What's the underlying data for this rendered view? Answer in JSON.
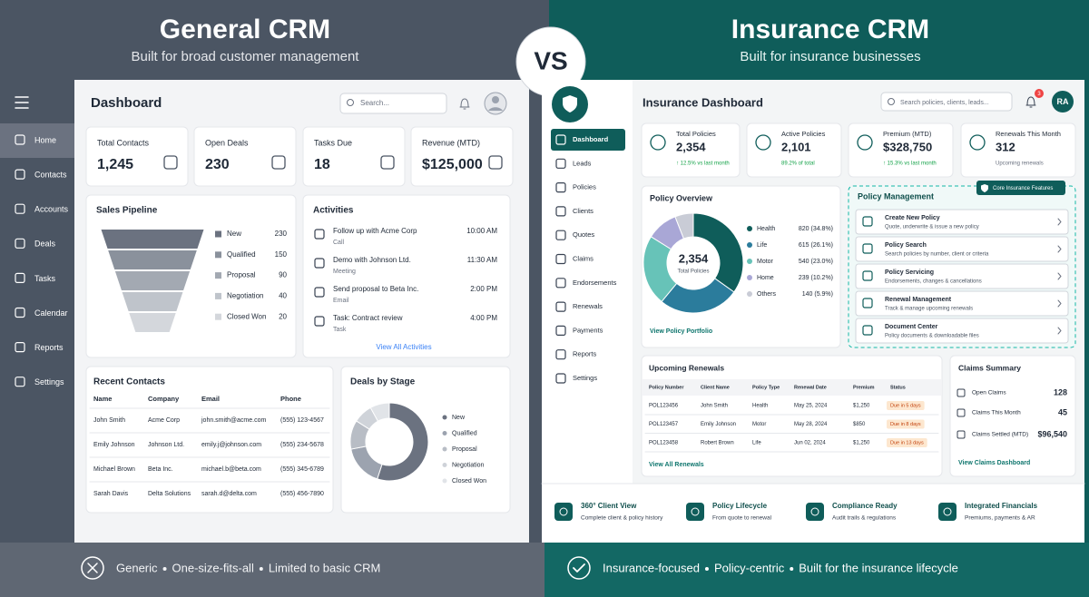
{
  "left": {
    "title": "General CRM",
    "subtitle": "Built for broad customer management",
    "nav": [
      "Home",
      "Contacts",
      "Accounts",
      "Deals",
      "Tasks",
      "Calendar",
      "Reports",
      "Settings"
    ],
    "dashboard_title": "Dashboard",
    "search_placeholder": "Search...",
    "kpis": [
      {
        "label": "Total Contacts",
        "value": "1,245"
      },
      {
        "label": "Open Deals",
        "value": 230
      },
      {
        "label": "Tasks Due",
        "value": 18
      },
      {
        "label": "Revenue (MTD)",
        "value": "$125,000"
      }
    ],
    "sales_pipeline": {
      "title": "Sales Pipeline",
      "stages": [
        "New",
        "Qualified",
        "Proposal",
        "Negotiation",
        "Closed Won"
      ],
      "values": [
        230,
        150,
        90,
        40,
        20
      ]
    },
    "activities": {
      "title": "Activities",
      "items": [
        {
          "title": "Follow up with Acme Corp",
          "type": "Call",
          "time": "10:00 AM"
        },
        {
          "title": "Demo with Johnson Ltd.",
          "type": "Meeting",
          "time": "11:30 AM"
        },
        {
          "title": "Send proposal to Beta Inc.",
          "type": "Email",
          "time": "2:00 PM"
        },
        {
          "title": "Task: Contract review",
          "type": "Task",
          "time": "4:00 PM"
        }
      ],
      "link": "View All Activities"
    },
    "recent_contacts": {
      "title": "Recent Contacts",
      "columns": [
        "Name",
        "Company",
        "Email",
        "Phone"
      ],
      "rows": [
        [
          "John Smith",
          "Acme Corp",
          "john.smith@acme.com",
          "(555) 123-4567"
        ],
        [
          "Emily Johnson",
          "Johnson Ltd.",
          "emily.j@johnson.com",
          "(555) 234-5678"
        ],
        [
          "Michael Brown",
          "Beta Inc.",
          "michael.b@beta.com",
          "(555) 345-6789"
        ],
        [
          "Sarah Davis",
          "Delta Solutions",
          "sarah.d@delta.com",
          "(555) 456-7890"
        ]
      ]
    },
    "deals_by_stage": {
      "title": "Deals by Stage",
      "legend": [
        "New",
        "Qualified",
        "Proposal",
        "Negotiation",
        "Closed Won"
      ]
    },
    "footer": [
      "Generic",
      "One-size-fits-all",
      "Limited to basic CRM"
    ]
  },
  "vs": "VS",
  "right": {
    "title": "Insurance CRM",
    "subtitle": "Built for insurance businesses",
    "nav": [
      "Dashboard",
      "Leads",
      "Policies",
      "Clients",
      "Quotes",
      "Claims",
      "Endorsements",
      "Renewals",
      "Payments",
      "Reports",
      "Settings"
    ],
    "dashboard_title": "Insurance Dashboard",
    "search_placeholder": "Search policies, clients, leads...",
    "notifications": 3,
    "user_initials": "RA",
    "kpis": [
      {
        "label": "Total Policies",
        "value": "2,354",
        "note": "↑ 12.5% vs last month"
      },
      {
        "label": "Active Policies",
        "value": "2,101",
        "note": "89.2% of total"
      },
      {
        "label": "Premium (MTD)",
        "value": "$328,750",
        "note": "↑ 15.3% vs last month"
      },
      {
        "label": "Renewals This Month",
        "value": 312,
        "note": "Upcoming renewals"
      }
    ],
    "policy_overview": {
      "title": "Policy Overview",
      "center_value": "2,354",
      "center_label": "Total Policies",
      "categories": [
        "Health",
        "Life",
        "Motor",
        "Home",
        "Others"
      ],
      "values": [
        820,
        615,
        540,
        239,
        140
      ],
      "value_labels": [
        "820 (34.8%)",
        "615 (26.1%)",
        "540 (23.0%)",
        "239 (10.2%)",
        "140 (5.9%)"
      ],
      "colors": [
        "#0f5d5a",
        "#2b7c9c",
        "#67c3b8",
        "#a9a7d6",
        "#c9ccd6"
      ],
      "link": "View Policy Portfolio"
    },
    "policy_management": {
      "title": "Policy Management",
      "badge": "Core Insurance Features",
      "items": [
        {
          "title": "Create New Policy",
          "desc": "Quote, underwrite & issue a new policy"
        },
        {
          "title": "Policy Search",
          "desc": "Search policies by number, client or criteria"
        },
        {
          "title": "Policy Servicing",
          "desc": "Endorsements, changes & cancellations"
        },
        {
          "title": "Renewal Management",
          "desc": "Track & manage upcoming renewals"
        },
        {
          "title": "Document Center",
          "desc": "Policy documents & downloadable files"
        }
      ]
    },
    "upcoming_renewals": {
      "title": "Upcoming Renewals",
      "columns": [
        "Policy Number",
        "Client Name",
        "Policy Type",
        "Renewal Date",
        "Premium",
        "Status"
      ],
      "rows": [
        [
          "POL123456",
          "John Smith",
          "Health",
          "May 25, 2024",
          "$1,250",
          "Due in 5 days"
        ],
        [
          "POL123457",
          "Emily Johnson",
          "Motor",
          "May 28, 2024",
          "$850",
          "Due in 8 days"
        ],
        [
          "POL123458",
          "Robert Brown",
          "Life",
          "Jun 02, 2024",
          "$1,250",
          "Due in 13 days"
        ]
      ],
      "link": "View All Renewals"
    },
    "claims_summary": {
      "title": "Claims Summary",
      "items": [
        {
          "label": "Open Claims",
          "value": 128
        },
        {
          "label": "Claims This Month",
          "value": 45
        },
        {
          "label": "Claims Settled (MTD)",
          "value": "$96,540"
        }
      ],
      "link": "View Claims Dashboard"
    },
    "features": [
      {
        "title": "360° Client View",
        "desc": "Complete client & policy history"
      },
      {
        "title": "Policy Lifecycle",
        "desc": "From quote to renewal"
      },
      {
        "title": "Compliance Ready",
        "desc": "Audit trails & regulations"
      },
      {
        "title": "Integrated Financials",
        "desc": "Premiums, payments & AR"
      }
    ],
    "footer": [
      "Insurance-focused",
      "Policy-centric",
      "Built for the insurance lifecycle"
    ]
  }
}
